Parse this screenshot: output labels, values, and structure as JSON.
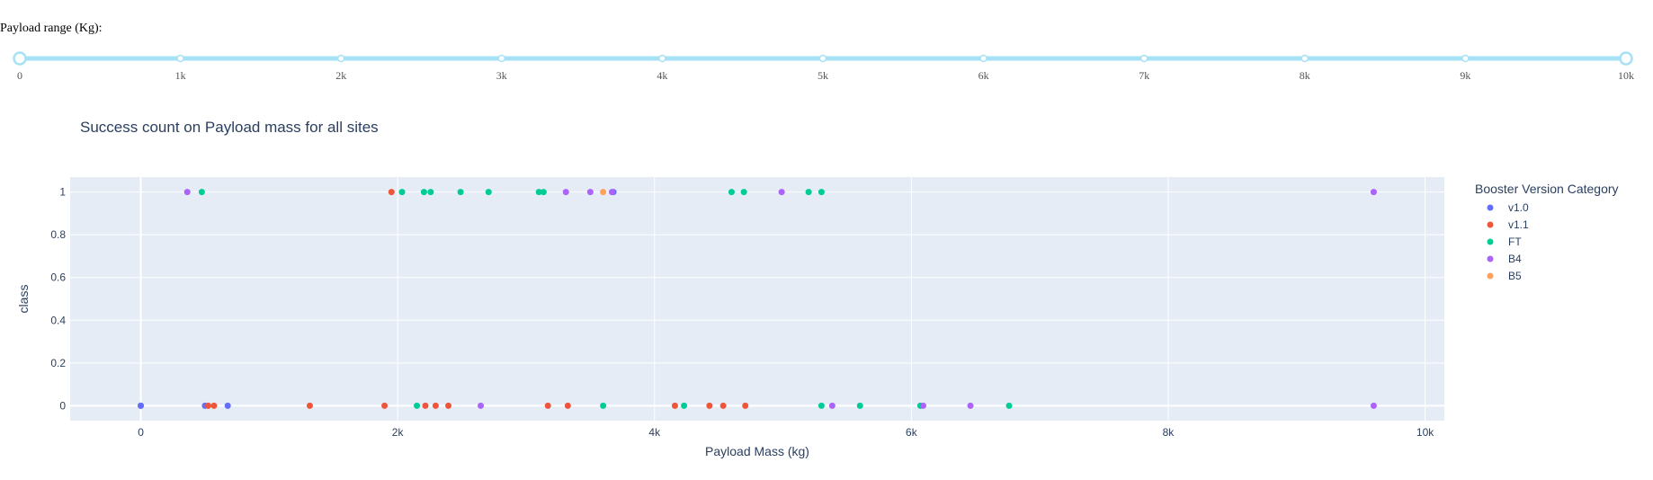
{
  "slider": {
    "label": "Payload range (Kg):",
    "min": 0,
    "max": 10000,
    "value": [
      0,
      10000
    ],
    "marks": [
      "0",
      "1k",
      "2k",
      "3k",
      "4k",
      "5k",
      "6k",
      "7k",
      "8k",
      "9k",
      "10k"
    ],
    "track_color": "#a6e1f5"
  },
  "chart_data": {
    "type": "scatter",
    "title": "Success count on Payload mass for all sites",
    "xlabel": "Payload Mass (kg)",
    "ylabel": "class",
    "xlim": [
      -550,
      10150
    ],
    "ylim": [
      -0.07,
      1.07
    ],
    "xticks": [
      0,
      2000,
      4000,
      6000,
      8000,
      10000
    ],
    "xtick_labels": [
      "0",
      "2k",
      "4k",
      "6k",
      "8k",
      "10k"
    ],
    "yticks": [
      0,
      0.2,
      0.4,
      0.6,
      0.8,
      1
    ],
    "ytick_labels": [
      "0",
      "0.2",
      "0.4",
      "0.6",
      "0.8",
      "1"
    ],
    "legend_title": "Booster Version Category",
    "legend_position": "right",
    "plot_bgcolor": "#e5ecf6",
    "series": [
      {
        "name": "v1.0",
        "color": "#636efa",
        "x": [
          0,
          0,
          677,
          500,
          3680
        ],
        "y": [
          0,
          0,
          0,
          0,
          1
        ]
      },
      {
        "name": "v1.1",
        "color": "#ef553b",
        "x": [
          525,
          570,
          1316,
          1898,
          1952,
          2216,
          2296,
          2395,
          3170,
          3325,
          4159,
          4428,
          4535,
          4707
        ],
        "y": [
          0,
          0,
          0,
          0,
          1,
          0,
          0,
          0,
          0,
          0,
          0,
          0,
          0,
          0
        ]
      },
      {
        "name": "FT",
        "color": "#00cc96",
        "x": [
          475,
          2034,
          2205,
          2257,
          2490,
          2708,
          3100,
          3136,
          4600,
          4696,
          5300,
          5200,
          2150,
          3600,
          4230,
          5300,
          5600,
          6070,
          6761
        ],
        "y": [
          1,
          1,
          1,
          1,
          1,
          1,
          1,
          1,
          1,
          1,
          1,
          1,
          0,
          0,
          0,
          0,
          0,
          0,
          0
        ]
      },
      {
        "name": "B4",
        "color": "#ab63fa",
        "x": [
          362,
          3310,
          3500,
          3669,
          4990,
          9600,
          2647,
          5384,
          6092,
          6460,
          9600
        ],
        "y": [
          1,
          1,
          1,
          1,
          1,
          1,
          0,
          0,
          0,
          0,
          0
        ]
      },
      {
        "name": "B5",
        "color": "#ffa15a",
        "x": [
          3600
        ],
        "y": [
          1
        ]
      }
    ]
  }
}
